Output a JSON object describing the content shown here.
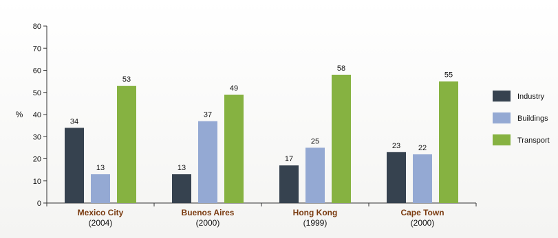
{
  "chart_data": {
    "type": "bar",
    "title": "",
    "ylabel": "%",
    "xlabel": "",
    "ylim": [
      0,
      80
    ],
    "yticks": [
      0,
      10,
      20,
      30,
      40,
      50,
      60,
      70,
      80
    ],
    "grid": false,
    "legend_position": "right",
    "categories": [
      {
        "name": "Mexico City",
        "sub": "(2004)"
      },
      {
        "name": "Buenos Aires",
        "sub": "(2000)"
      },
      {
        "name": "Hong Kong",
        "sub": "(1999)"
      },
      {
        "name": "Cape Town",
        "sub": "(2000)"
      }
    ],
    "series": [
      {
        "name": "Industry",
        "color": "#36424f",
        "values": [
          34,
          13,
          17,
          23
        ]
      },
      {
        "name": "Buildings",
        "color": "#94a9d3",
        "values": [
          13,
          37,
          25,
          22
        ]
      },
      {
        "name": "Transport",
        "color": "#86b241",
        "values": [
          53,
          49,
          58,
          55
        ]
      }
    ],
    "colors": {
      "category_label": "#7a3b10",
      "axis": "#333333"
    }
  }
}
